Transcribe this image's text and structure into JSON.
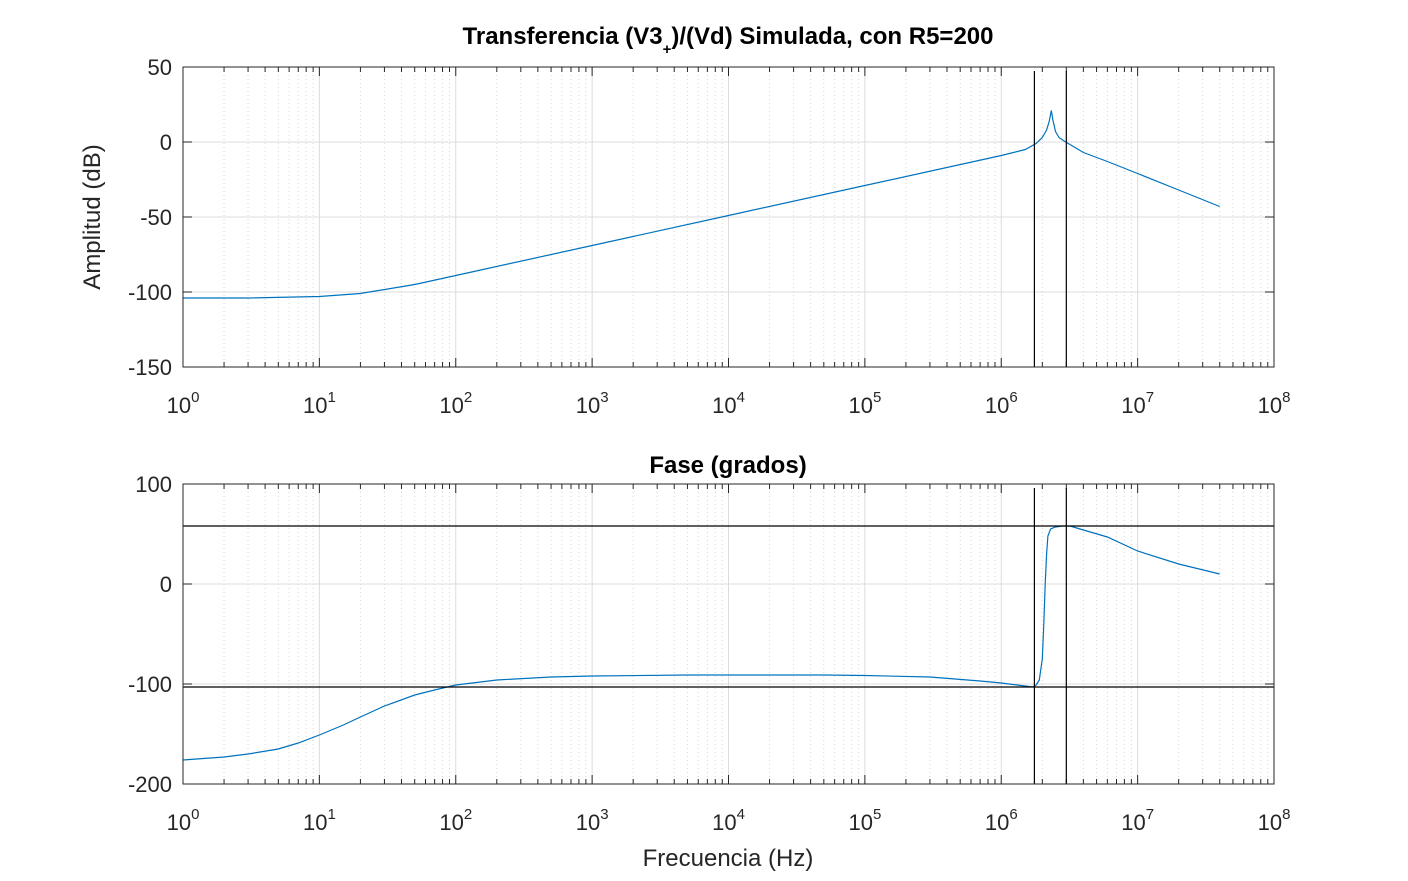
{
  "chart_data": [
    {
      "type": "line",
      "title": "Transferencia (V3 )/(Vd) Simulada, con R5=200",
      "title_parts": {
        "pre": "Transferencia (V3",
        "sub": "+",
        "post": ")/(Vd) Simulada, con R5=200"
      },
      "xlabel": "",
      "ylabel": "Amplitud (dB)",
      "xscale": "log",
      "xlim": [
        1,
        100000000
      ],
      "ylim": [
        -150,
        50
      ],
      "xticks": [
        1,
        10,
        100,
        1000,
        10000,
        100000,
        1000000,
        10000000,
        100000000
      ],
      "xtick_labels": [
        {
          "base": "10",
          "exp": "0"
        },
        {
          "base": "10",
          "exp": "1"
        },
        {
          "base": "10",
          "exp": "2"
        },
        {
          "base": "10",
          "exp": "3"
        },
        {
          "base": "10",
          "exp": "4"
        },
        {
          "base": "10",
          "exp": "5"
        },
        {
          "base": "10",
          "exp": "6"
        },
        {
          "base": "10",
          "exp": "7"
        },
        {
          "base": "10",
          "exp": "8"
        }
      ],
      "yticks": [
        50,
        0,
        -50,
        -100,
        -150
      ],
      "ytick_labels": [
        "50",
        "0",
        "-50",
        "-100",
        "-150"
      ],
      "grid": true,
      "line_color": "#0072BD",
      "series": [
        {
          "x": [
            1,
            3,
            10,
            20,
            50,
            100,
            1000,
            10000,
            100000,
            1000000,
            1500000,
            1800000,
            2000000,
            2150000,
            2250000,
            2330000,
            2400000,
            2500000,
            2650000,
            2850000,
            3100000,
            4000000,
            6000000,
            10000000,
            20000000,
            40000000
          ],
          "y": [
            -104,
            -104,
            -103,
            -101,
            -95,
            -89,
            -69,
            -49,
            -29,
            -9,
            -5,
            -1,
            3,
            8,
            14,
            21,
            14,
            7,
            3,
            1,
            -1,
            -7,
            -13,
            -21,
            -32,
            -43
          ]
        }
      ],
      "vlines": [
        1750000,
        3000000
      ]
    },
    {
      "type": "line",
      "title": "Fase (grados)",
      "xlabel": "Frecuencia (Hz)",
      "ylabel": "",
      "xscale": "log",
      "xlim": [
        1,
        100000000
      ],
      "ylim": [
        -200,
        100
      ],
      "xticks": [
        1,
        10,
        100,
        1000,
        10000,
        100000,
        1000000,
        10000000,
        100000000
      ],
      "xtick_labels": [
        {
          "base": "10",
          "exp": "0"
        },
        {
          "base": "10",
          "exp": "1"
        },
        {
          "base": "10",
          "exp": "2"
        },
        {
          "base": "10",
          "exp": "3"
        },
        {
          "base": "10",
          "exp": "4"
        },
        {
          "base": "10",
          "exp": "5"
        },
        {
          "base": "10",
          "exp": "6"
        },
        {
          "base": "10",
          "exp": "7"
        },
        {
          "base": "10",
          "exp": "8"
        }
      ],
      "yticks": [
        100,
        0,
        -100,
        -200
      ],
      "ytick_labels": [
        "100",
        "0",
        "-100",
        "-200"
      ],
      "grid": true,
      "line_color": "#0072BD",
      "series": [
        {
          "x": [
            1,
            2,
            3,
            5,
            7,
            10,
            15,
            20,
            30,
            50,
            70,
            100,
            200,
            500,
            1000,
            5000,
            10000,
            50000,
            100000,
            300000,
            700000,
            1000000,
            1400000,
            1700000,
            1800000,
            1900000,
            2000000,
            2050000,
            2100000,
            2150000,
            2200000,
            2300000,
            2500000,
            2800000,
            3000000,
            3200000,
            4000000,
            6000000,
            10000000,
            20000000,
            40000000
          ],
          "y": [
            -176,
            -173,
            -170,
            -165,
            -159,
            -151,
            -141,
            -133,
            -122,
            -111,
            -106,
            -101,
            -96,
            -93,
            -92,
            -91,
            -91,
            -91,
            -91.5,
            -93,
            -97,
            -99,
            -101.5,
            -103,
            -101,
            -96,
            -75,
            -40,
            0,
            30,
            48,
            55,
            57,
            58,
            58,
            58,
            54,
            47,
            33,
            20,
            10
          ]
        }
      ],
      "vlines": [
        1750000,
        3000000
      ],
      "hlines": [
        58,
        -103
      ]
    }
  ]
}
